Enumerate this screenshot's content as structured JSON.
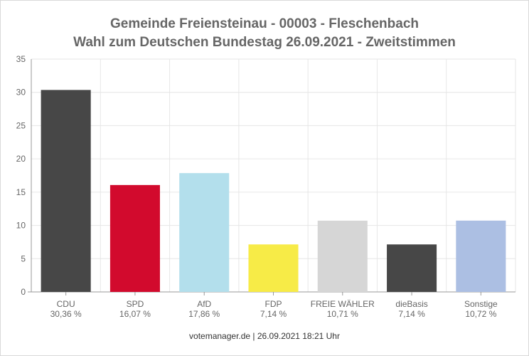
{
  "title_line1": "Gemeinde Freiensteinau - 00003 - Fleschenbach",
  "title_line2": "Wahl zum Deutschen Bundestag 26.09.2021  - Zweitstimmen",
  "footer": "votemanager.de | 26.09.2021 18:21 Uhr",
  "chart_data": {
    "type": "bar",
    "categories": [
      "CDU",
      "SPD",
      "AfD",
      "FDP",
      "FREIE WÄHLER",
      "dieBasis",
      "Sonstige"
    ],
    "values": [
      30.36,
      16.07,
      17.86,
      7.14,
      10.71,
      7.14,
      10.72
    ],
    "value_labels": [
      "30,36 %",
      "16,07 %",
      "17,86 %",
      "7,14 %",
      "10,71 %",
      "7,14 %",
      "10,72 %"
    ],
    "colors": [
      "#474747",
      "#d20a2d",
      "#b3dfec",
      "#f7eb47",
      "#d6d6d6",
      "#474747",
      "#acbfe3"
    ],
    "ylim": [
      0,
      35
    ],
    "yticks": [
      0,
      5,
      10,
      15,
      20,
      25,
      30,
      35
    ],
    "grid": true,
    "legend": "none"
  }
}
